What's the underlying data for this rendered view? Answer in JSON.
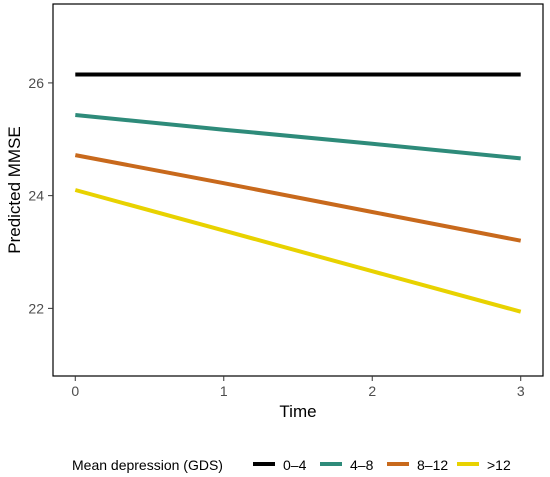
{
  "chart_data": {
    "type": "line",
    "title": "",
    "xlabel": "Time",
    "ylabel": "Predicted MMSE",
    "x": [
      0,
      1,
      2,
      3
    ],
    "x_ticks": [
      "0",
      "1",
      "2",
      "3"
    ],
    "y_ticks": [
      "22",
      "24",
      "26"
    ],
    "xlim": [
      -0.15,
      3.15
    ],
    "ylim": [
      20.8,
      27.4
    ],
    "grid": false,
    "legend": {
      "title": "Mean depression (GDS)",
      "position": "bottom"
    },
    "series": [
      {
        "name": "0–4",
        "color": "#000000",
        "values": [
          26.15,
          26.15,
          26.15,
          26.15
        ]
      },
      {
        "name": "4–8",
        "color": "#2e8b7a",
        "values": [
          25.43,
          25.17,
          24.92,
          24.66
        ]
      },
      {
        "name": "8–12",
        "color": "#c8691c",
        "values": [
          24.72,
          24.22,
          23.71,
          23.2
        ]
      },
      {
        "name": ">12",
        "color": "#e8d200",
        "values": [
          24.1,
          23.38,
          22.66,
          21.94
        ]
      }
    ]
  }
}
